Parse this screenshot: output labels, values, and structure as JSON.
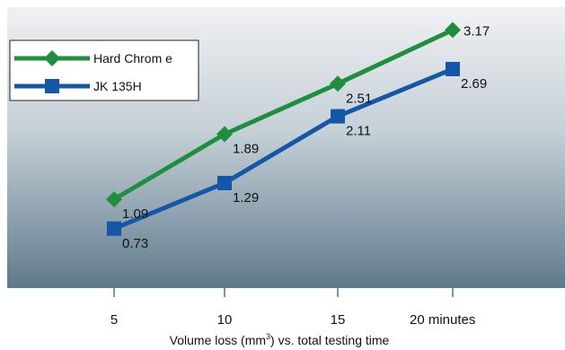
{
  "chart_data": {
    "type": "line",
    "categories": [
      "5",
      "10",
      "15",
      "20 minutes"
    ],
    "x": [
      5,
      10,
      15,
      20
    ],
    "series": [
      {
        "name": "Hard Chrom e",
        "values": [
          1.09,
          1.89,
          2.51,
          3.17
        ],
        "labels": [
          "1.09",
          "1.89",
          "2.51",
          "3.17"
        ],
        "color": "#1f8f3f",
        "marker": "diamond"
      },
      {
        "name": "JK 135H",
        "values": [
          0.73,
          1.29,
          2.11,
          2.69
        ],
        "labels": [
          "0.73",
          "1.29",
          "2.11",
          "2.69"
        ],
        "color": "#1456a8",
        "marker": "square"
      }
    ],
    "xlabel_main": "Volume loss (mm",
    "xlabel_sup": "3",
    "xlabel_rest": ") vs. total testing time",
    "ylim": [
      0,
      3.45
    ],
    "legend": "top-left",
    "grid": false,
    "background_gradient": [
      "#f0f1f3",
      "#5f7a8c"
    ]
  }
}
